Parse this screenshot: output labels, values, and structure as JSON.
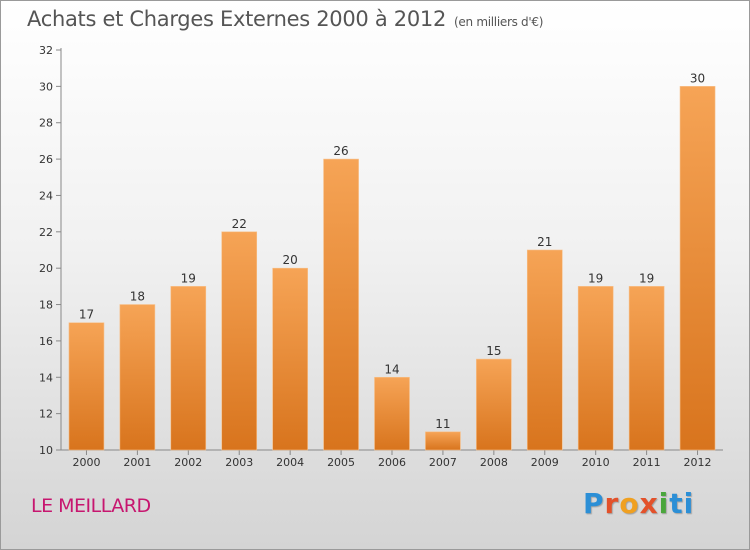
{
  "header": {
    "title": "Achats et Charges Externes 2000 à 2012",
    "subtitle": "(en milliers d'€)"
  },
  "footer": {
    "town": "LE MEILLARD",
    "logo_text": "Proxiti"
  },
  "colors": {
    "bar_top": "#f6a456",
    "bar_bottom": "#d8741d",
    "town": "#c7166f"
  },
  "chart_data": {
    "type": "bar",
    "categories": [
      "2000",
      "2001",
      "2002",
      "2003",
      "2004",
      "2005",
      "2006",
      "2007",
      "2008",
      "2009",
      "2010",
      "2011",
      "2012"
    ],
    "values": [
      17,
      18,
      19,
      22,
      20,
      26,
      14,
      11,
      15,
      21,
      19,
      19,
      30
    ],
    "data_labels": [
      "17",
      "18",
      "19",
      "22",
      "20",
      "26",
      "14",
      "11",
      "15",
      "21",
      "19",
      "19",
      "30"
    ],
    "title": "Achats et Charges Externes 2000 à 2012",
    "xlabel": "",
    "ylabel": "",
    "ylim": [
      10,
      32
    ],
    "yticks": [
      10,
      12,
      14,
      16,
      18,
      20,
      22,
      24,
      26,
      28,
      30,
      32
    ],
    "grid": false,
    "legend": "none"
  }
}
